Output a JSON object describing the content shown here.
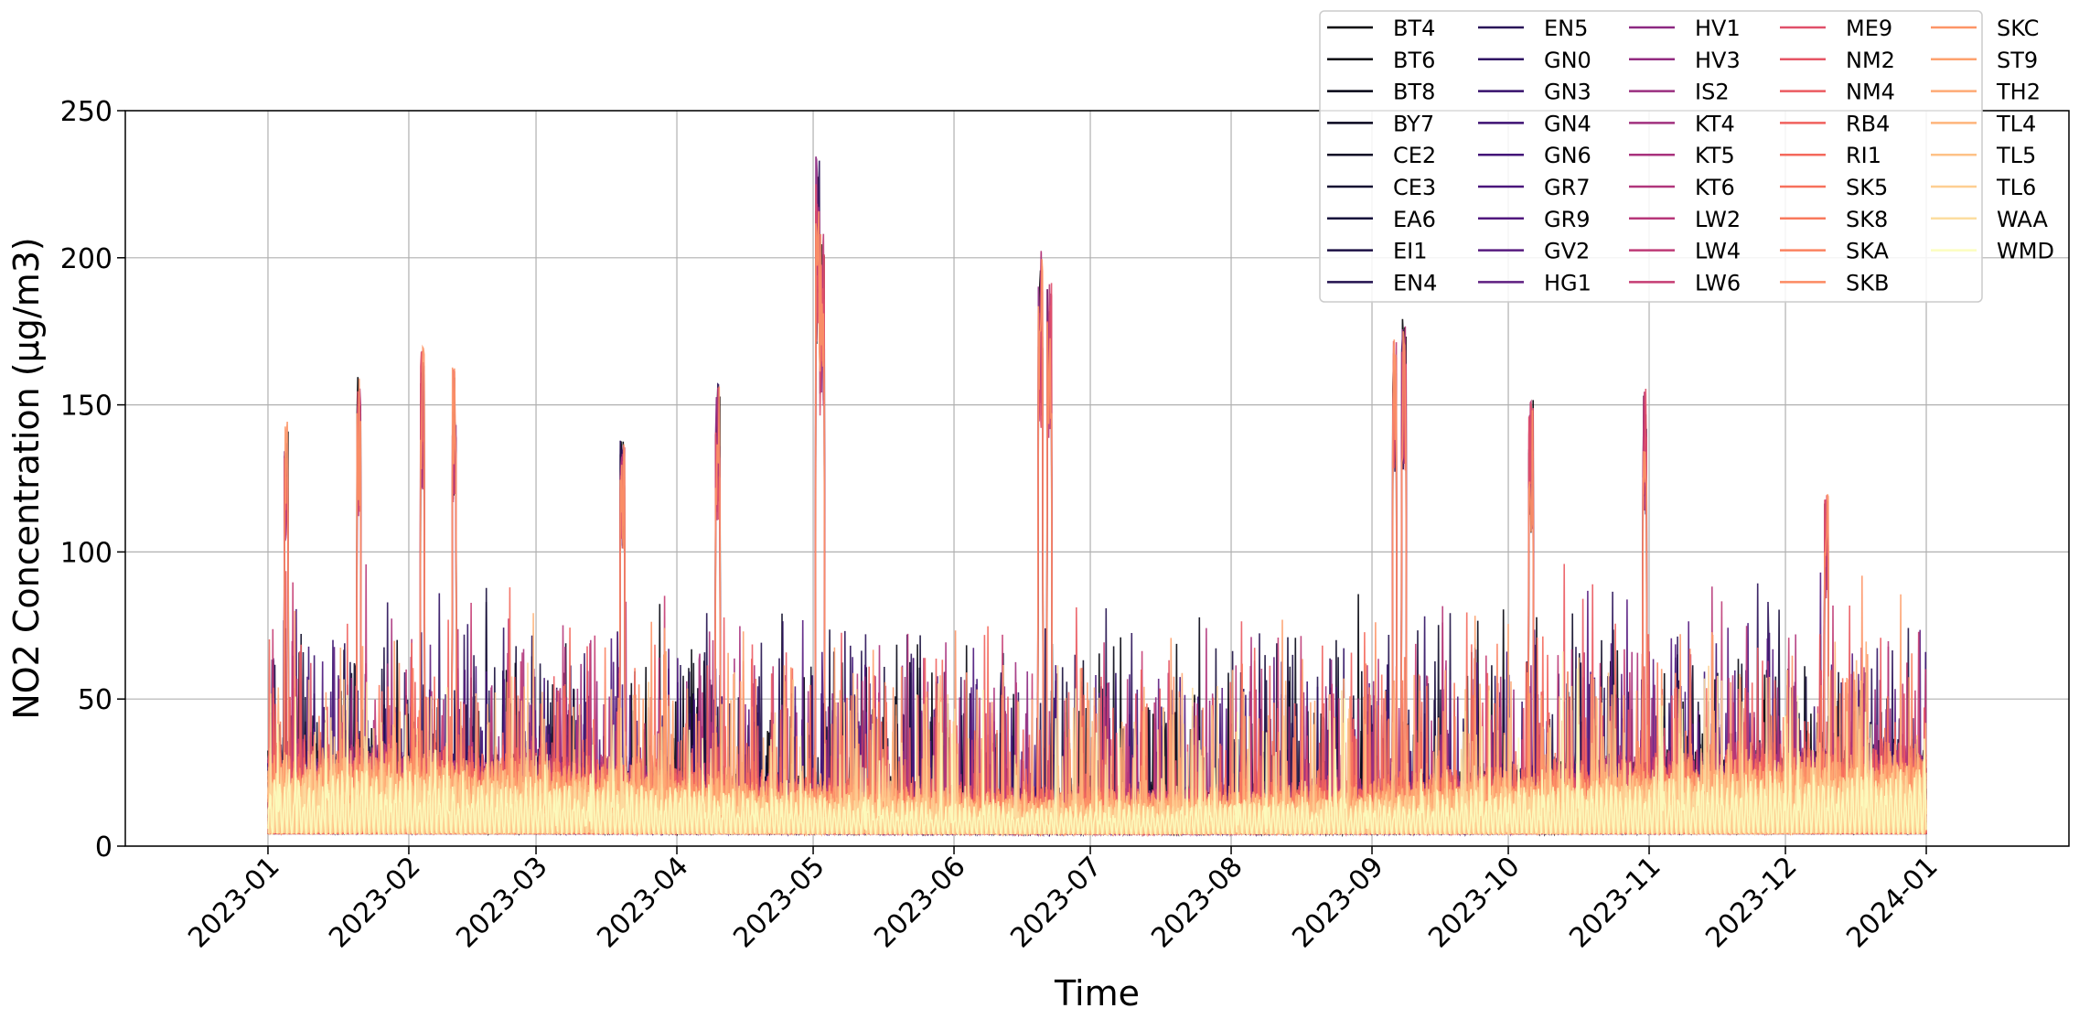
{
  "chart_data": {
    "type": "line",
    "title": "",
    "xlabel": "Time",
    "ylabel": "NO2 Concentration (µg/m3)",
    "xlim": [
      "2023-01-01",
      "2024-01-01"
    ],
    "ylim": [
      0,
      250
    ],
    "y_ticks": [
      0,
      50,
      100,
      150,
      200,
      250
    ],
    "x_ticks": [
      "2023-01",
      "2023-02",
      "2023-03",
      "2023-04",
      "2023-05",
      "2023-06",
      "2023-07",
      "2023-08",
      "2023-09",
      "2023-10",
      "2023-11",
      "2023-12",
      "2024-01"
    ],
    "grid": true,
    "legend_placement": "top-right",
    "legend_columns": 5,
    "colormap": "magma",
    "series": [
      {
        "name": "BT4",
        "color": "#000004"
      },
      {
        "name": "BT6",
        "color": "#02020b"
      },
      {
        "name": "BT8",
        "color": "#040414"
      },
      {
        "name": "BY7",
        "color": "#08061e"
      },
      {
        "name": "CE2",
        "color": "#0c0926"
      },
      {
        "name": "CE3",
        "color": "#110b31"
      },
      {
        "name": "EA6",
        "color": "#160d3b"
      },
      {
        "name": "EI1",
        "color": "#1c1044"
      },
      {
        "name": "EN4",
        "color": "#22114e"
      },
      {
        "name": "EN5",
        "color": "#291158"
      },
      {
        "name": "GN0",
        "color": "#2f1163"
      },
      {
        "name": "GN3",
        "color": "#36106b"
      },
      {
        "name": "GN4",
        "color": "#3d1172"
      },
      {
        "name": "GN6",
        "color": "#431378"
      },
      {
        "name": "GR7",
        "color": "#4a167b"
      },
      {
        "name": "GR9",
        "color": "#51187e"
      },
      {
        "name": "GV2",
        "color": "#571b7f"
      },
      {
        "name": "HG1",
        "color": "#5e1e80"
      },
      {
        "name": "HV1",
        "color": "#8c2981"
      },
      {
        "name": "HV3",
        "color": "#932b80"
      },
      {
        "name": "IS2",
        "color": "#9a2e7f"
      },
      {
        "name": "KT4",
        "color": "#a1307e"
      },
      {
        "name": "KT5",
        "color": "#a8327d"
      },
      {
        "name": "KT6",
        "color": "#b0357b"
      },
      {
        "name": "LW2",
        "color": "#b73779"
      },
      {
        "name": "LW4",
        "color": "#be3a76"
      },
      {
        "name": "LW6",
        "color": "#c53c73"
      },
      {
        "name": "ME9",
        "color": "#e0506a"
      },
      {
        "name": "NM2",
        "color": "#e65565"
      },
      {
        "name": "NM4",
        "color": "#eb5a60"
      },
      {
        "name": "RB4",
        "color": "#f0605d"
      },
      {
        "name": "RI1",
        "color": "#f4695c"
      },
      {
        "name": "SK5",
        "color": "#f7705c"
      },
      {
        "name": "SK8",
        "color": "#f9795d"
      },
      {
        "name": "SKA",
        "color": "#fb8260"
      },
      {
        "name": "SKB",
        "color": "#fc8a62"
      },
      {
        "name": "SKC",
        "color": "#fd9567"
      },
      {
        "name": "ST9",
        "color": "#fea16e"
      },
      {
        "name": "TH2",
        "color": "#feaa74"
      },
      {
        "name": "TL4",
        "color": "#feb47b"
      },
      {
        "name": "TL5",
        "color": "#fec287"
      },
      {
        "name": "TL6",
        "color": "#fecf92"
      },
      {
        "name": "WAA",
        "color": "#fcdda0"
      },
      {
        "name": "WMD",
        "color": "#fcfdbf"
      }
    ],
    "notable_peaks": [
      {
        "x": "2023-01-05",
        "y": 147
      },
      {
        "x": "2023-01-21",
        "y": 160
      },
      {
        "x": "2023-02-04",
        "y": 170
      },
      {
        "x": "2023-02-11",
        "y": 167
      },
      {
        "x": "2023-03-20",
        "y": 140
      },
      {
        "x": "2023-04-10",
        "y": 158
      },
      {
        "x": "2023-05-02",
        "y": 236
      },
      {
        "x": "2023-05-03",
        "y": 209
      },
      {
        "x": "2023-06-20",
        "y": 203
      },
      {
        "x": "2023-06-22",
        "y": 192
      },
      {
        "x": "2023-09-06",
        "y": 173
      },
      {
        "x": "2023-09-08",
        "y": 180
      },
      {
        "x": "2023-10-06",
        "y": 152
      },
      {
        "x": "2023-10-31",
        "y": 157
      },
      {
        "x": "2023-12-10",
        "y": 120
      }
    ],
    "typical_range": {
      "baseline_low": 0,
      "dense_band_high": 60,
      "frequent_peaks_high": 110
    }
  }
}
